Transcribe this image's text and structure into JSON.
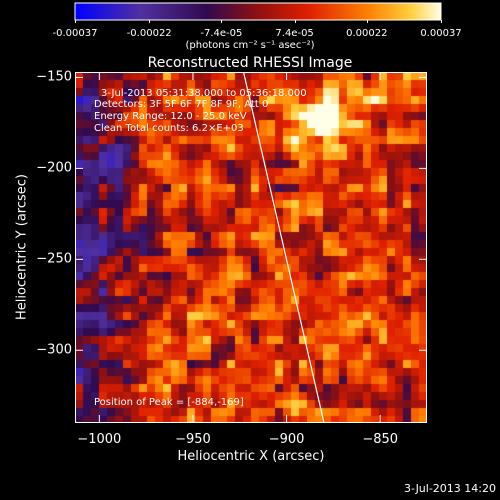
{
  "colorbar": {
    "ticks": [
      "-0.00037",
      "-0.00022",
      "-7.4e-05",
      "7.4e-05",
      "0.00022",
      "0.00037"
    ],
    "tick_values": [
      -0.00037,
      -0.00022,
      -7.4e-05,
      7.4e-05,
      0.00022,
      0.00037
    ],
    "unit_label": "(photons cm⁻² s⁻¹ asec⁻²)",
    "colormap": [
      "#0000ff",
      "#5a2a9a",
      "#3a1060",
      "#b01818",
      "#ff4a00",
      "#ffb000",
      "#ffffe0"
    ]
  },
  "title": "Reconstructed RHESSI Image",
  "info": {
    "time": "3-Jul-2013 05:31:38.000 to 05:36:18.000",
    "detectors": "Detectors: 3F 5F 6F 7F 8F 9F, Att 0",
    "energy": "Energy Range: 12.0 - 25.0 keV",
    "method": "Clean    Total counts: 6.2×E+03"
  },
  "peak_label": "Position of Peak = [-884,-169]",
  "footer_date": "3-Jul-2013 14:20",
  "chart_data": {
    "type": "heatmap",
    "title": "Reconstructed RHESSI Image",
    "xlabel": "Heliocentric X (arcsec)",
    "ylabel": "Heliocentric Y (arcsec)",
    "xlim": [
      -1013,
      -825
    ],
    "ylim": [
      -340,
      -147
    ],
    "x_ticks": [
      -1000,
      -950,
      -900,
      -850
    ],
    "y_ticks": [
      -150,
      -200,
      -250,
      -300
    ],
    "x_tick_labels": [
      "−1000",
      "−950",
      "−900",
      "−850"
    ],
    "y_tick_labels": [
      "−150",
      "−200",
      "−250",
      "−300"
    ],
    "peak": {
      "x": -884,
      "y": -169
    },
    "limb_line": [
      [
        -923,
        -147
      ],
      [
        -880,
        -340
      ]
    ],
    "value_range": [
      -0.00037,
      0.00037
    ]
  }
}
